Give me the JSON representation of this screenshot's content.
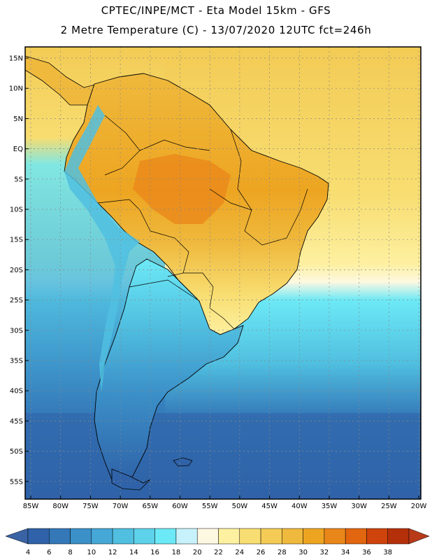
{
  "title": {
    "line1": "CPTEC/INPE/MCT  -   Eta Model 15km  -  GFS",
    "line2": "2 Metre Temperature (C) - 13/07/2020 12UTC fct=246h"
  },
  "axes": {
    "lat_labels": [
      "15N",
      "10N",
      "5N",
      "EQ",
      "5S",
      "10S",
      "15S",
      "20S",
      "25S",
      "30S",
      "35S",
      "40S",
      "45S",
      "50S",
      "55S"
    ],
    "lon_labels": [
      "85W",
      "80W",
      "75W",
      "70W",
      "65W",
      "60W",
      "55W",
      "50W",
      "45W",
      "40W",
      "35W",
      "30W",
      "25W",
      "20W"
    ]
  },
  "colorbar": {
    "labels": [
      "4",
      "6",
      "8",
      "10",
      "12",
      "14",
      "16",
      "18",
      "20",
      "22",
      "24",
      "26",
      "28",
      "30",
      "32",
      "34",
      "36",
      "38"
    ],
    "colors": [
      "#2f62a8",
      "#3478b8",
      "#3b90c8",
      "#46a8d6",
      "#50bfe0",
      "#5dd2ea",
      "#6ce9f6",
      "#c8f2fb",
      "#fdf8e2",
      "#fdf0a0",
      "#f8de72",
      "#f3cb55",
      "#efb93d",
      "#eda521",
      "#e9861a",
      "#e2650f",
      "#cf430c",
      "#b5300a"
    ],
    "low_color": "#3a63a6",
    "high_color": "#b83a18"
  },
  "colors": {
    "ocean_south": "#2f62a8",
    "ocean_mid": "#50bfe0",
    "ocean_north": "#f3cb55",
    "land_hot": "#efb93d",
    "land_andes": "#6ce9f6"
  }
}
